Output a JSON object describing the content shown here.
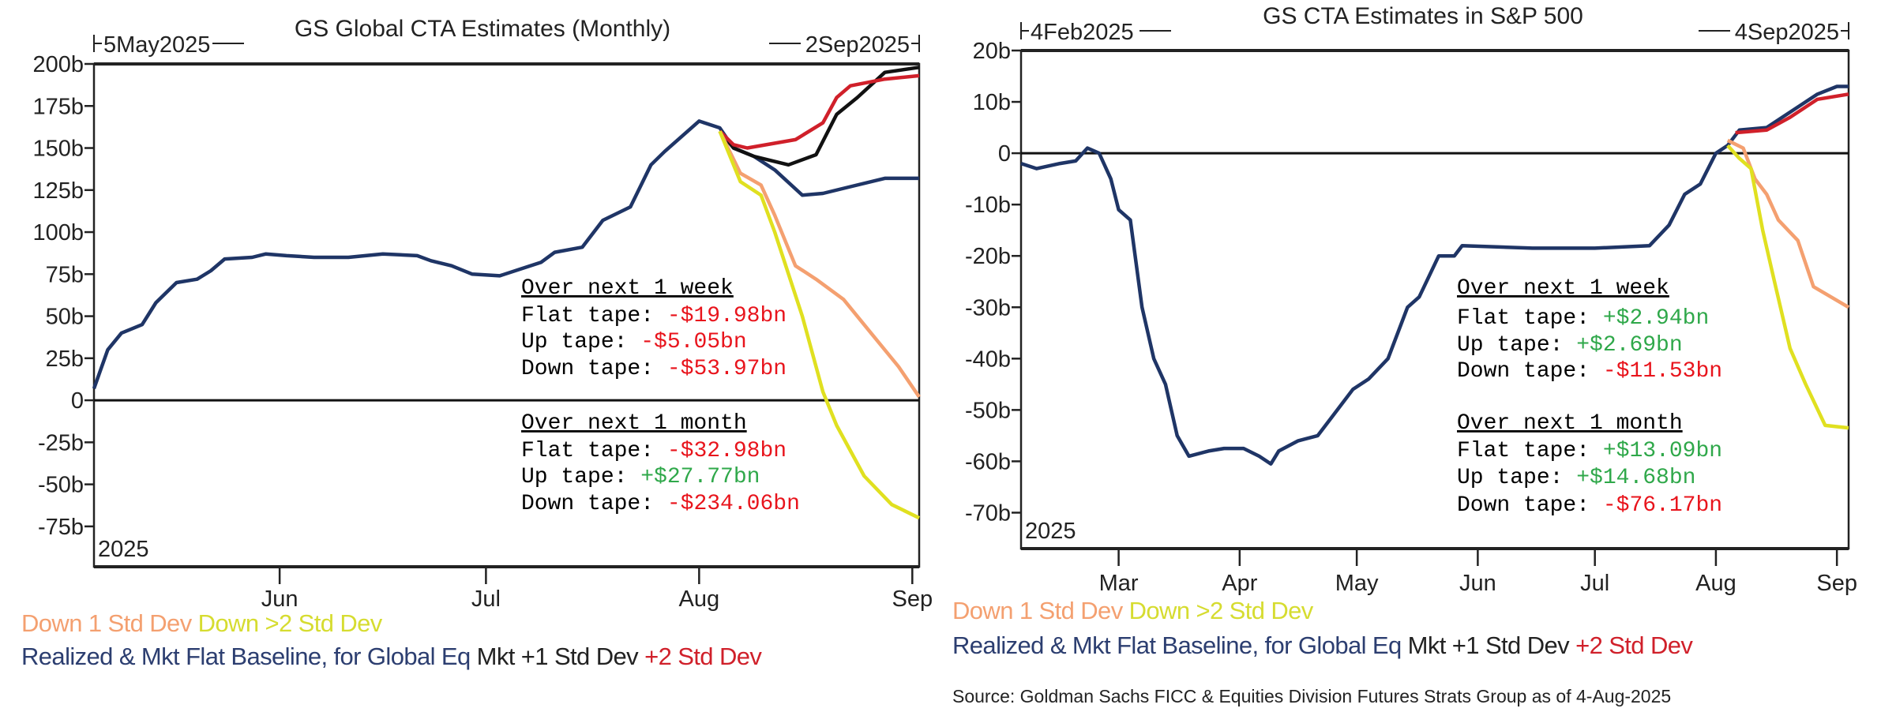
{
  "chart_data": [
    {
      "type": "line",
      "title": "GS Global CTA Estimates (Monthly)",
      "range_start_label": "5May2025",
      "range_end_label": "2Sep2025",
      "year_label": "2025",
      "xlim": [
        "2025-05-05",
        "2025-09-02"
      ],
      "ylim": [
        -99,
        200
      ],
      "grid": false,
      "yticks": [
        {
          "value": 200,
          "label": "200b"
        },
        {
          "value": 175,
          "label": "175b"
        },
        {
          "value": 150,
          "label": "150b"
        },
        {
          "value": 125,
          "label": "125b"
        },
        {
          "value": 100,
          "label": "100b"
        },
        {
          "value": 75,
          "label": "75b"
        },
        {
          "value": 50,
          "label": "50b"
        },
        {
          "value": 25,
          "label": "25b"
        },
        {
          "value": 0,
          "label": "0"
        },
        {
          "value": -25,
          "label": "-25b"
        },
        {
          "value": -50,
          "label": "-50b"
        },
        {
          "value": -75,
          "label": "-75b"
        }
      ],
      "xticks": [
        {
          "date": "2025-06-01",
          "label": "Jun"
        },
        {
          "date": "2025-07-01",
          "label": "Jul"
        },
        {
          "date": "2025-08-01",
          "label": "Aug"
        },
        {
          "date": "2025-09-01",
          "label": "Sep"
        }
      ],
      "series": [
        {
          "name": "Realized & Mkt Flat Baseline, for Global Eq",
          "color": "#1f3566",
          "points": [
            [
              "2025-05-05",
              7
            ],
            [
              "2025-05-07",
              30
            ],
            [
              "2025-05-09",
              40
            ],
            [
              "2025-05-12",
              45
            ],
            [
              "2025-05-14",
              58
            ],
            [
              "2025-05-17",
              70
            ],
            [
              "2025-05-20",
              72
            ],
            [
              "2025-05-22",
              77
            ],
            [
              "2025-05-24",
              84
            ],
            [
              "2025-05-28",
              85
            ],
            [
              "2025-05-30",
              87
            ],
            [
              "2025-06-02",
              86
            ],
            [
              "2025-06-06",
              85
            ],
            [
              "2025-06-11",
              85
            ],
            [
              "2025-06-16",
              87
            ],
            [
              "2025-06-21",
              86
            ],
            [
              "2025-06-23",
              83
            ],
            [
              "2025-06-26",
              80
            ],
            [
              "2025-06-29",
              75
            ],
            [
              "2025-07-03",
              74
            ],
            [
              "2025-07-06",
              78
            ],
            [
              "2025-07-09",
              82
            ],
            [
              "2025-07-11",
              88
            ],
            [
              "2025-07-15",
              91
            ],
            [
              "2025-07-18",
              107
            ],
            [
              "2025-07-22",
              115
            ],
            [
              "2025-07-25",
              140
            ],
            [
              "2025-07-27",
              148
            ],
            [
              "2025-08-01",
              166
            ],
            [
              "2025-08-04",
              162
            ],
            [
              "2025-08-06",
              150
            ],
            [
              "2025-08-09",
              145
            ],
            [
              "2025-08-12",
              137
            ],
            [
              "2025-08-16",
              122
            ],
            [
              "2025-08-19",
              123
            ],
            [
              "2025-08-23",
              127
            ],
            [
              "2025-08-28",
              132
            ],
            [
              "2025-09-02",
              132
            ]
          ]
        },
        {
          "name": "Mkt +1 Std Dev",
          "color": "#111111",
          "points": [
            [
              "2025-08-04",
              160
            ],
            [
              "2025-08-06",
              150
            ],
            [
              "2025-08-09",
              145
            ],
            [
              "2025-08-14",
              140
            ],
            [
              "2025-08-18",
              146
            ],
            [
              "2025-08-21",
              170
            ],
            [
              "2025-08-24",
              180
            ],
            [
              "2025-08-28",
              195
            ],
            [
              "2025-09-02",
              198
            ]
          ]
        },
        {
          "name": "+2 Std Dev",
          "color": "#d0202a",
          "points": [
            [
              "2025-08-04",
              160
            ],
            [
              "2025-08-06",
              152
            ],
            [
              "2025-08-08",
              150
            ],
            [
              "2025-08-15",
              155
            ],
            [
              "2025-08-19",
              165
            ],
            [
              "2025-08-21",
              180
            ],
            [
              "2025-08-23",
              187
            ],
            [
              "2025-08-28",
              191
            ],
            [
              "2025-09-02",
              193
            ]
          ]
        },
        {
          "name": "Down 1 Std Dev",
          "color": "#f4a070",
          "points": [
            [
              "2025-08-04",
              160
            ],
            [
              "2025-08-07",
              135
            ],
            [
              "2025-08-10",
              128
            ],
            [
              "2025-08-12",
              110
            ],
            [
              "2025-08-15",
              80
            ],
            [
              "2025-08-18",
              72
            ],
            [
              "2025-08-22",
              60
            ],
            [
              "2025-08-26",
              40
            ],
            [
              "2025-08-30",
              20
            ],
            [
              "2025-09-02",
              2
            ]
          ]
        },
        {
          "name": "Down >2 Std Dev",
          "color": "#e0e020",
          "points": [
            [
              "2025-08-04",
              160
            ],
            [
              "2025-08-07",
              130
            ],
            [
              "2025-08-10",
              122
            ],
            [
              "2025-08-12",
              100
            ],
            [
              "2025-08-16",
              50
            ],
            [
              "2025-08-19",
              5
            ],
            [
              "2025-08-21",
              -15
            ],
            [
              "2025-08-25",
              -45
            ],
            [
              "2025-08-29",
              -62
            ],
            [
              "2025-09-02",
              -70
            ]
          ]
        }
      ],
      "annotations": [
        {
          "heading": "Over next 1 week",
          "rows": [
            {
              "label": "Flat tape: ",
              "value": "-$19.98bn",
              "color": "#e8141c"
            },
            {
              "label": "Up tape: ",
              "value": "-$5.05bn",
              "color": "#e8141c"
            },
            {
              "label": "Down tape: ",
              "value": "-$53.97bn",
              "color": "#e8141c"
            }
          ]
        },
        {
          "heading": "Over next 1 month",
          "rows": [
            {
              "label": "Flat tape: ",
              "value": "-$32.98bn",
              "color": "#e8141c"
            },
            {
              "label": "Up tape: ",
              "value": "+$27.77bn",
              "color": "#2fa84a"
            },
            {
              "label": "Down tape: ",
              "value": "-$234.06bn",
              "color": "#e8141c"
            }
          ]
        }
      ],
      "legend": [
        [
          {
            "text": "Down 1 Std Dev",
            "color": "#f4a070"
          },
          {
            "text": "Down >2 Std Dev",
            "color": "#d6dc30"
          }
        ],
        [
          {
            "text": "Realized & Mkt Flat Baseline, for Global Eq",
            "color": "#2c3e70"
          },
          {
            "text": "Mkt +1 Std Dev",
            "color": "#222222"
          },
          {
            "text": "+2 Std Dev",
            "color": "#d0202a"
          }
        ]
      ],
      "legend_placement": "bottom"
    },
    {
      "type": "line",
      "title": "GS CTA Estimates in S&P 500",
      "range_start_label": "4Feb2025",
      "range_end_label": "4Sep2025",
      "year_label": "2025",
      "xlim": [
        "2025-02-04",
        "2025-09-04"
      ],
      "ylim": [
        -77,
        20
      ],
      "grid": false,
      "yticks": [
        {
          "value": 20,
          "label": "20b"
        },
        {
          "value": 10,
          "label": "10b"
        },
        {
          "value": 0,
          "label": "0"
        },
        {
          "value": -10,
          "label": "-10b"
        },
        {
          "value": -20,
          "label": "-20b"
        },
        {
          "value": -30,
          "label": "-30b"
        },
        {
          "value": -40,
          "label": "-40b"
        },
        {
          "value": -50,
          "label": "-50b"
        },
        {
          "value": -60,
          "label": "-60b"
        },
        {
          "value": -70,
          "label": "-70b"
        }
      ],
      "xticks": [
        {
          "date": "2025-03-01",
          "label": "Mar"
        },
        {
          "date": "2025-04-01",
          "label": "Apr"
        },
        {
          "date": "2025-05-01",
          "label": "May"
        },
        {
          "date": "2025-06-01",
          "label": "Jun"
        },
        {
          "date": "2025-07-01",
          "label": "Jul"
        },
        {
          "date": "2025-08-01",
          "label": "Aug"
        },
        {
          "date": "2025-09-01",
          "label": "Sep"
        }
      ],
      "series": [
        {
          "name": "Realized & Mkt Flat Baseline, for Global Eq",
          "color": "#1f3566",
          "points": [
            [
              "2025-02-04",
              -2
            ],
            [
              "2025-02-08",
              -3
            ],
            [
              "2025-02-14",
              -2
            ],
            [
              "2025-02-18",
              -1.5
            ],
            [
              "2025-02-21",
              1
            ],
            [
              "2025-02-24",
              0
            ],
            [
              "2025-02-27",
              -5
            ],
            [
              "2025-03-01",
              -11
            ],
            [
              "2025-03-04",
              -13
            ],
            [
              "2025-03-07",
              -30
            ],
            [
              "2025-03-10",
              -40
            ],
            [
              "2025-03-13",
              -45
            ],
            [
              "2025-03-16",
              -55
            ],
            [
              "2025-03-19",
              -59
            ],
            [
              "2025-03-24",
              -58
            ],
            [
              "2025-03-28",
              -57.5
            ],
            [
              "2025-04-02",
              -57.5
            ],
            [
              "2025-04-06",
              -59
            ],
            [
              "2025-04-09",
              -60.5
            ],
            [
              "2025-04-11",
              -58
            ],
            [
              "2025-04-16",
              -56
            ],
            [
              "2025-04-21",
              -55
            ],
            [
              "2025-04-25",
              -51
            ],
            [
              "2025-04-30",
              -46
            ],
            [
              "2025-05-04",
              -44
            ],
            [
              "2025-05-09",
              -40
            ],
            [
              "2025-05-14",
              -30
            ],
            [
              "2025-05-17",
              -28
            ],
            [
              "2025-05-22",
              -20
            ],
            [
              "2025-05-26",
              -20
            ],
            [
              "2025-05-28",
              -18
            ],
            [
              "2025-06-15",
              -18.5
            ],
            [
              "2025-07-01",
              -18.5
            ],
            [
              "2025-07-15",
              -18
            ],
            [
              "2025-07-20",
              -14
            ],
            [
              "2025-07-24",
              -8
            ],
            [
              "2025-07-28",
              -6
            ],
            [
              "2025-08-01",
              0
            ],
            [
              "2025-08-04",
              1.5
            ],
            [
              "2025-08-07",
              4.5
            ],
            [
              "2025-08-14",
              5
            ],
            [
              "2025-08-20",
              8
            ],
            [
              "2025-08-27",
              11.5
            ],
            [
              "2025-09-01",
              13
            ],
            [
              "2025-09-04",
              13
            ]
          ]
        },
        {
          "name": "+2 Std Dev",
          "color": "#d0202a",
          "points": [
            [
              "2025-08-06",
              4
            ],
            [
              "2025-08-14",
              4.5
            ],
            [
              "2025-08-20",
              7
            ],
            [
              "2025-08-27",
              10.5
            ],
            [
              "2025-09-04",
              11.5
            ]
          ]
        },
        {
          "name": "Down 1 Std Dev",
          "color": "#f4a070",
          "points": [
            [
              "2025-08-04",
              2.5
            ],
            [
              "2025-08-08",
              1
            ],
            [
              "2025-08-11",
              -5
            ],
            [
              "2025-08-14",
              -8
            ],
            [
              "2025-08-17",
              -13
            ],
            [
              "2025-08-22",
              -17
            ],
            [
              "2025-08-26",
              -26
            ],
            [
              "2025-09-04",
              -30
            ]
          ]
        },
        {
          "name": "Down >2 Std Dev",
          "color": "#e0e020",
          "points": [
            [
              "2025-08-04",
              1.5
            ],
            [
              "2025-08-07",
              -1
            ],
            [
              "2025-08-10",
              -3
            ],
            [
              "2025-08-13",
              -15
            ],
            [
              "2025-08-16",
              -25
            ],
            [
              "2025-08-20",
              -38
            ],
            [
              "2025-08-24",
              -45
            ],
            [
              "2025-08-29",
              -53
            ],
            [
              "2025-09-04",
              -53.5
            ]
          ]
        }
      ],
      "annotations": [
        {
          "heading": "Over next 1 week",
          "rows": [
            {
              "label": "Flat tape: ",
              "value": "+$2.94bn",
              "color": "#2fa84a"
            },
            {
              "label": "Up tape: ",
              "value": "+$2.69bn",
              "color": "#2fa84a"
            },
            {
              "label": "Down tape: ",
              "value": "-$11.53bn",
              "color": "#e8141c"
            }
          ]
        },
        {
          "heading": "Over next 1 month",
          "rows": [
            {
              "label": "Flat tape: ",
              "value": "+$13.09bn",
              "color": "#2fa84a"
            },
            {
              "label": "Up tape: ",
              "value": "+$14.68bn",
              "color": "#2fa84a"
            },
            {
              "label": "Down tape: ",
              "value": "-$76.17bn",
              "color": "#e8141c"
            }
          ]
        }
      ],
      "legend": [
        [
          {
            "text": "Down 1 Std Dev",
            "color": "#f4a070"
          },
          {
            "text": "Down >2 Std Dev",
            "color": "#d6dc30"
          }
        ],
        [
          {
            "text": "Realized & Mkt Flat Baseline, for Global Eq",
            "color": "#2c3e70"
          },
          {
            "text": "Mkt +1 Std Dev",
            "color": "#222222"
          },
          {
            "text": "+2 Std Dev",
            "color": "#d0202a"
          }
        ]
      ],
      "legend_placement": "bottom",
      "source": "Source: Goldman Sachs FICC & Equities Division Futures Strats Group as of 4-Aug-2025"
    }
  ]
}
